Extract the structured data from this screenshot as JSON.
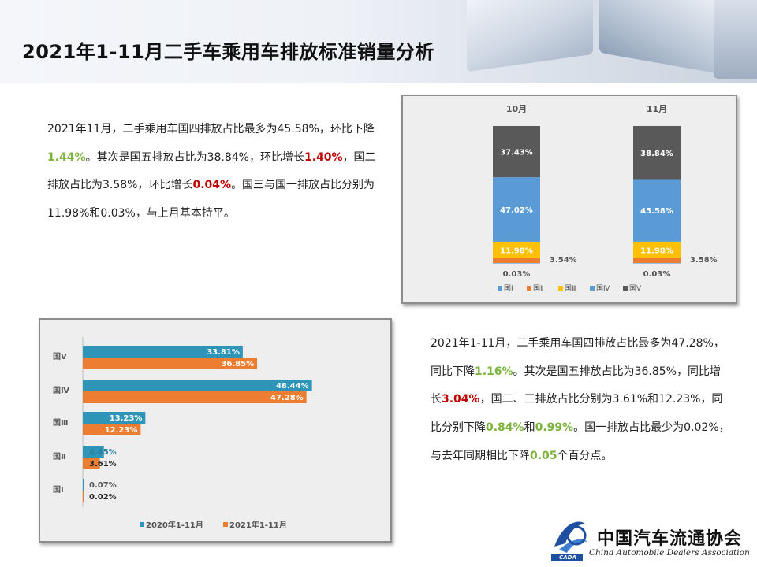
{
  "title": "2021年1-11月二手车乘用车排放标准销量分析",
  "para1": [
    {
      "text": "2021年11月，二手乘用车国四排放占比最多为45.58%，环比下降",
      "c": ""
    },
    {
      "text": "1.44%",
      "c": "g"
    },
    {
      "text": "。其次是国五排放占比为38.84%，环比增长",
      "c": ""
    },
    {
      "text": "1.40%",
      "c": "r"
    },
    {
      "text": "，国二排放占比为3.58%，环比增长",
      "c": ""
    },
    {
      "text": "0.04%",
      "c": "r"
    },
    {
      "text": "。国三与国一排放占比分别为11.98%和0.03%，与上月基本持平。",
      "c": ""
    }
  ],
  "para2": [
    {
      "text": "2021年1-11月，二手乘用车国四排放占比最多为47.28%，同比下降",
      "c": ""
    },
    {
      "text": "1.16%",
      "c": "g"
    },
    {
      "text": "。其次是国五排放占比为36.85%，同比增长",
      "c": ""
    },
    {
      "text": "3.04%",
      "c": "r"
    },
    {
      "text": "，国二、三排放占比分别为3.61%和12.23%，同比分别下降",
      "c": ""
    },
    {
      "text": "0.84%",
      "c": "g"
    },
    {
      "text": "和",
      "c": ""
    },
    {
      "text": "0.99%",
      "c": "g"
    },
    {
      "text": "。国一排放占比最少为0.02%，与去年同期相比下降",
      "c": ""
    },
    {
      "text": "0.05",
      "c": "g"
    },
    {
      "text": "个百分点。",
      "c": ""
    }
  ],
  "logo": {
    "cn": "中国汽车流通协会",
    "en": "China Automobile Dealers Association",
    "abbr": "CADA"
  },
  "chart_data": [
    {
      "type": "bar",
      "stacked": true,
      "categories": [
        "10月",
        "11月"
      ],
      "series": [
        {
          "name": "国Ⅰ",
          "color": "#5b9bd5",
          "values": [
            0.03,
            0.03
          ],
          "labels": [
            "0.03%",
            "0.03%"
          ]
        },
        {
          "name": "国Ⅱ",
          "color": "#ed7d31",
          "values": [
            3.54,
            3.58
          ],
          "labels": [
            "3.54%",
            "3.58%"
          ]
        },
        {
          "name": "国Ⅲ",
          "color": "#ffc000",
          "values": [
            11.98,
            11.98
          ],
          "labels": [
            "11.98%",
            "11.98%"
          ]
        },
        {
          "name": "国Ⅳ",
          "color": "#5b9bd5",
          "values": [
            47.02,
            45.58
          ],
          "labels": [
            "47.02%",
            "45.58%"
          ]
        },
        {
          "name": "国Ⅴ",
          "color": "#595959",
          "values": [
            37.43,
            38.84
          ],
          "labels": [
            "37.43%",
            "38.84%"
          ]
        }
      ],
      "legend_position": "bottom",
      "grid": false
    },
    {
      "type": "bar",
      "orientation": "horizontal",
      "categories": [
        "国Ⅴ",
        "国Ⅳ",
        "国Ⅲ",
        "国Ⅱ",
        "国Ⅰ"
      ],
      "series": [
        {
          "name": "2020年1-11月",
          "color": "#2e95b8",
          "values": [
            33.81,
            48.44,
            13.23,
            4.45,
            0.07
          ],
          "labels": [
            "33.81%",
            "48.44%",
            "13.23%",
            "4.45%",
            "0.07%"
          ]
        },
        {
          "name": "2021年1-11月",
          "color": "#ed7d31",
          "values": [
            36.85,
            47.28,
            12.23,
            3.61,
            0.02
          ],
          "labels": [
            "36.85%",
            "47.28%",
            "12.23%",
            "3.61%",
            "0.02%"
          ]
        }
      ],
      "legend_position": "bottom",
      "grid": false
    }
  ]
}
